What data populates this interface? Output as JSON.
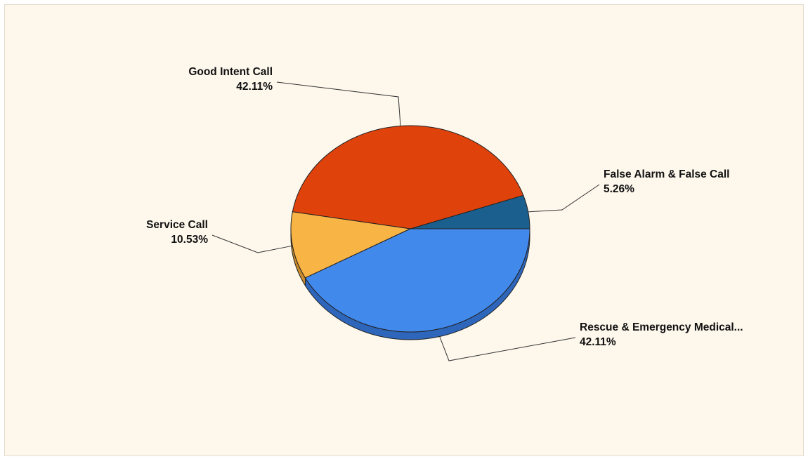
{
  "chart_data": {
    "type": "pie",
    "title": "",
    "style": "3d",
    "slices": [
      {
        "label": "False Alarm & False Call",
        "value": 5.26,
        "value_label": "5.26%",
        "color": "#1b5f8e",
        "side_color": "#123f5f"
      },
      {
        "label": "Good Intent Call",
        "value": 42.11,
        "value_label": "42.11%",
        "color": "#e0420c",
        "side_color": "#a9300a"
      },
      {
        "label": "Service Call",
        "value": 10.53,
        "value_label": "10.53%",
        "color": "#f8b445",
        "side_color": "#c98b2b"
      },
      {
        "label": "Rescue & Emergency Medical...",
        "value": 42.11,
        "value_label": "42.11%",
        "color": "#4289ec",
        "side_color": "#2d66bb"
      }
    ]
  },
  "colors": {
    "background": "#fdf7ec",
    "border": "#e6dccb"
  }
}
